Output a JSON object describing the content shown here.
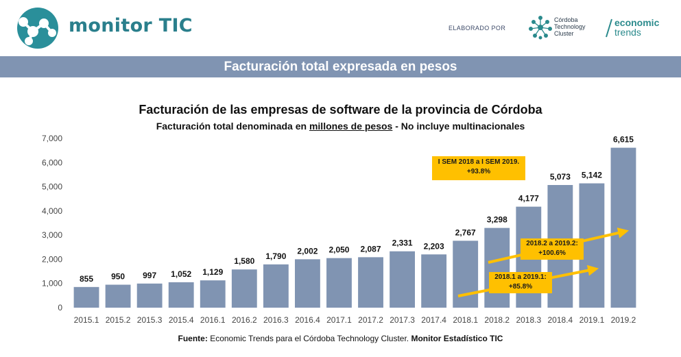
{
  "brand": {
    "name": "monitor TIC",
    "elaborado": "ELABORADO POR",
    "ctc": [
      "Córdoba",
      "Technology",
      "Cluster"
    ],
    "et_bold": "economic",
    "et_light": "trends"
  },
  "banner": "Facturación total expresada en pesos",
  "chart_data": {
    "type": "bar",
    "title": "Facturación de las empresas de software de la provincia de Córdoba",
    "subtitle_pre": "Facturación total denominada en ",
    "subtitle_underlined": "millones de pesos",
    "subtitle_post": " - No incluye multinacionales",
    "categories": [
      "2015.1",
      "2015.2",
      "2015.3",
      "2015.4",
      "2016.1",
      "2016.2",
      "2016.3",
      "2016.4",
      "2017.1",
      "2017.2",
      "2017.3",
      "2017.4",
      "2018.1",
      "2018.2",
      "2018.3",
      "2018.4",
      "2019.1",
      "2019.2"
    ],
    "values": [
      855,
      950,
      997,
      1052,
      1129,
      1580,
      1790,
      2002,
      2050,
      2087,
      2331,
      2203,
      2767,
      3298,
      4177,
      5073,
      5142,
      6615
    ],
    "value_labels": [
      "855",
      "950",
      "997",
      "1,052",
      "1,129",
      "1,580",
      "1,790",
      "2,002",
      "2,050",
      "2,087",
      "2,331",
      "2,203",
      "2,767",
      "3,298",
      "4,177",
      "5,073",
      "5,142",
      "6,615"
    ],
    "ylim": [
      0,
      7000
    ],
    "yticks": [
      0,
      1000,
      2000,
      3000,
      4000,
      5000,
      6000,
      7000
    ],
    "ytick_labels": [
      "0",
      "1,000",
      "2,000",
      "3,000",
      "4,000",
      "5,000",
      "6,000",
      "7,000"
    ],
    "bar_color": "#8094b2",
    "annotations": [
      {
        "line1": "I SEM 2018 a I SEM 2019.",
        "line2": "+93.8%"
      },
      {
        "line1": "2018.2 a 2019.2:",
        "line2": "+100.6%"
      },
      {
        "line1": "2018.1 a 2019.1:",
        "line2": "+85.8%"
      }
    ],
    "annotation_color": "#ffc000"
  },
  "footer": {
    "label": "Fuente:",
    "text": " Economic Trends para el Córdoba Technology Cluster. ",
    "bold_tail": "Monitor Estadístico TIC"
  }
}
